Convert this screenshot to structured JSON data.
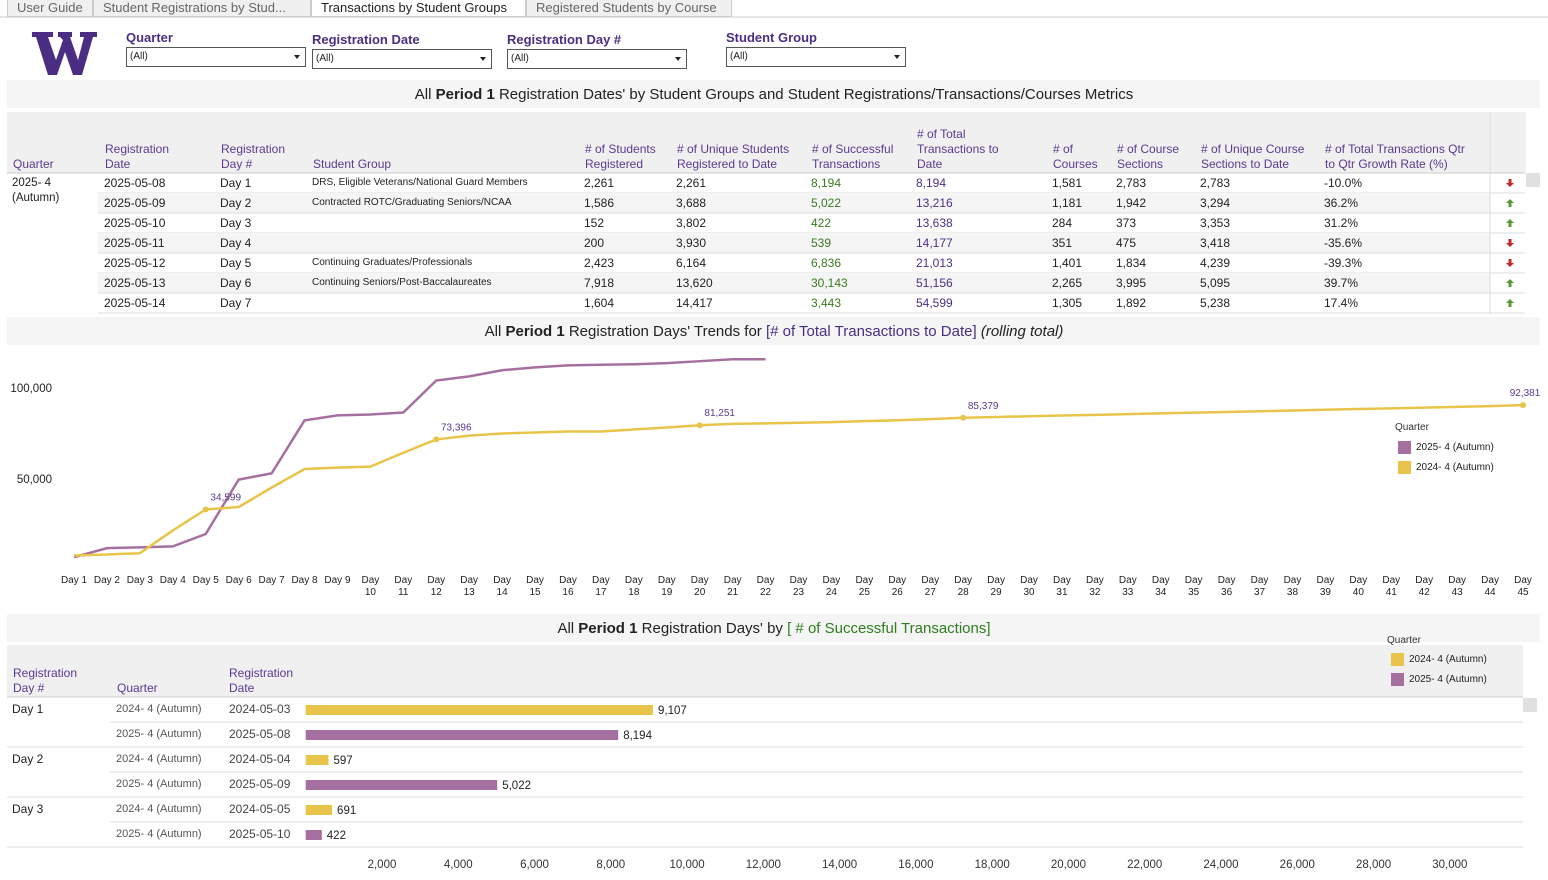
{
  "tabs": [
    "User Guide",
    "Student Registrations by Stud...",
    "Transactions by Student Groups",
    "Registered Students by Course"
  ],
  "active_tab": 2,
  "filters": [
    {
      "label": "Quarter",
      "value": "(All)"
    },
    {
      "label": "Registration Date",
      "value": "(All)"
    },
    {
      "label": "Registration Day #",
      "value": "(All)"
    },
    {
      "label": "Student Group",
      "value": "(All)"
    }
  ],
  "table": {
    "title_parts": [
      "All",
      "Period 1",
      "Registration Dates' by Student Groups and Student Registrations/Transactions/Courses Metrics"
    ],
    "columns": [
      "Quarter",
      "Registration Date",
      "Registration Day #",
      "Student Group",
      "# of Students Registered",
      "# of Unique Students Registered to Date",
      "# of Successful Transactions",
      "# of Total Transactions to Date",
      "# of Courses",
      "# of Course Sections",
      "# of Unique Course Sections to Date",
      "# of Total Transactions Qtr to Qtr Growth Rate (%)"
    ],
    "quarter": "2025- 4 (Autumn)",
    "rows": [
      [
        "2025-05-08",
        "Day 1",
        "DRS, Eligible Veterans/National Guard Members",
        "2,261",
        "2,261",
        "8,194",
        "8,194",
        "1,581",
        "2,783",
        "2,783",
        "-10.0%"
      ],
      [
        "2025-05-09",
        "Day 2",
        "Contracted ROTC/Graduating Seniors/NCAA",
        "1,586",
        "3,688",
        "5,022",
        "13,216",
        "1,181",
        "1,942",
        "3,294",
        "36.2%"
      ],
      [
        "2025-05-10",
        "Day 3",
        null,
        "152",
        "3,802",
        "422",
        "13,638",
        "284",
        "373",
        "3,353",
        "31.2%"
      ],
      [
        "2025-05-11",
        "Day 4",
        null,
        "200",
        "3,930",
        "539",
        "14,177",
        "351",
        "475",
        "3,418",
        "-35.6%"
      ],
      [
        "2025-05-12",
        "Day 5",
        "Continuing Graduates/Professionals",
        "2,423",
        "6,164",
        "6,836",
        "21,013",
        "1,401",
        "1,834",
        "4,239",
        "-39.3%"
      ],
      [
        "2025-05-13",
        "Day 6",
        "Continuing Seniors/Post-Baccalaureates",
        "7,918",
        "13,620",
        "30,143",
        "51,156",
        "2,265",
        "3,995",
        "5,095",
        "39.7%"
      ],
      [
        "2025-05-14",
        "Day 7",
        null,
        "1,604",
        "14,417",
        "3,443",
        "54,599",
        "1,305",
        "1,892",
        "5,238",
        "17.4%"
      ]
    ],
    "trend": [
      "down",
      "up",
      "up",
      "down",
      "down",
      "up",
      "up"
    ]
  },
  "chart_data": [
    {
      "type": "line",
      "title_parts": [
        "All",
        "Period 1",
        "Registration Days' Trends for",
        "[# of Total Transactions to Date]",
        "(rolling total)"
      ],
      "categories": [
        "Day 1",
        "Day 2",
        "Day 3",
        "Day 4",
        "Day 5",
        "Day 6",
        "Day 7",
        "Day 8",
        "Day 9",
        "Day 10",
        "Day 11",
        "Day 12",
        "Day 13",
        "Day 14",
        "Day 15",
        "Day 16",
        "Day 17",
        "Day 18",
        "Day 19",
        "Day 20",
        "Day 21",
        "Day 22",
        "Day 23",
        "Day 24",
        "Day 25",
        "Day 26",
        "Day 27",
        "Day 28",
        "Day 29",
        "Day 30",
        "Day 31",
        "Day 32",
        "Day 33",
        "Day 34",
        "Day 35",
        "Day 36",
        "Day 37",
        "Day 38",
        "Day 39",
        "Day 40",
        "Day 41",
        "Day 42",
        "Day 43",
        "Day 44",
        "Day 45"
      ],
      "legend_title": "Quarter",
      "series": [
        {
          "name": "2025- 4 (Autumn)",
          "color": "#a5709f",
          "values": [
            8194,
            13216,
            13638,
            14177,
            21013,
            51156,
            54599,
            83900,
            86700,
            87200,
            88300,
            106000,
            108300,
            111700,
            113300,
            114400,
            114700,
            115000,
            115600,
            116700,
            117800,
            117800,
            null,
            null,
            null,
            null,
            null,
            null,
            null,
            null,
            null,
            null,
            null,
            null,
            null,
            null,
            null,
            null,
            null,
            null,
            null,
            null,
            null,
            null,
            null
          ],
          "value_labels": [
            null,
            null,
            null,
            null,
            null,
            null,
            null,
            null,
            null,
            null,
            null,
            null,
            null,
            null,
            null,
            null,
            null,
            null,
            null,
            null,
            null,
            null,
            null,
            null,
            null,
            null,
            null,
            null,
            null,
            null,
            null,
            null,
            null,
            null,
            null,
            null,
            null,
            null,
            null,
            null,
            null,
            null,
            null,
            null,
            null
          ]
        },
        {
          "name": "2024- 4 (Autumn)",
          "color": "#e8c54a",
          "values": [
            9107,
            9704,
            10395,
            23000,
            34599,
            36000,
            46700,
            57000,
            57800,
            58300,
            66000,
            73396,
            75500,
            76700,
            77200,
            77800,
            77800,
            78900,
            80000,
            81251,
            82000,
            82300,
            82600,
            83000,
            83500,
            84000,
            84600,
            85379,
            85800,
            86200,
            86600,
            87000,
            87400,
            87800,
            88200,
            88600,
            89000,
            89400,
            89800,
            90200,
            90600,
            91000,
            91400,
            91800,
            92381
          ],
          "value_labels": [
            null,
            null,
            null,
            null,
            "34,599",
            null,
            null,
            null,
            null,
            null,
            null,
            "73,396",
            null,
            null,
            null,
            null,
            null,
            null,
            null,
            "81,251",
            null,
            null,
            null,
            null,
            null,
            null,
            null,
            "85,379",
            null,
            null,
            null,
            null,
            null,
            null,
            null,
            null,
            null,
            null,
            null,
            null,
            null,
            null,
            null,
            null,
            "92,381"
          ]
        }
      ],
      "ylim": [
        0,
        124000
      ],
      "yticks": [
        {
          "value": 50000,
          "label": "50,000"
        },
        {
          "value": 100000,
          "label": "100,000"
        }
      ]
    },
    {
      "type": "bar",
      "title_parts": [
        "All",
        "Period 1",
        "Registration Days' by",
        "[ # of Successful Transactions]"
      ],
      "columns": [
        "Registration Day #",
        "Quarter",
        "Registration Date"
      ],
      "days": [
        "Day 1",
        null,
        "Day 2",
        null,
        "Day 3",
        null
      ],
      "quarters": [
        "2024- 4 (Autumn)",
        "2025- 4 (Autumn)",
        "2024- 4 (Autumn)",
        "2025- 4 (Autumn)",
        "2024- 4 (Autumn)",
        "2025- 4 (Autumn)"
      ],
      "dates": [
        "2024-05-03",
        "2025-05-08",
        "2024-05-04",
        "2025-05-09",
        "2024-05-05",
        "2025-05-10"
      ],
      "values": [
        9107,
        8194,
        597,
        5022,
        691,
        422
      ],
      "value_labels": [
        "9,107",
        "8,194",
        "597",
        "5,022",
        "691",
        "422"
      ],
      "legend_title": "Quarter",
      "legend": [
        {
          "name": "2024- 4 (Autumn)",
          "color": "#e8c54a"
        },
        {
          "name": "2025- 4 (Autumn)",
          "color": "#a5709f"
        }
      ],
      "xlim": [
        0,
        31840
      ],
      "xticks": [
        {
          "value": 2000,
          "label": "2,000"
        },
        {
          "value": 4000,
          "label": "4,000"
        },
        {
          "value": 6000,
          "label": "6,000"
        },
        {
          "value": 8000,
          "label": "8,000"
        },
        {
          "value": 10000,
          "label": "10,000"
        },
        {
          "value": 12000,
          "label": "12,000"
        },
        {
          "value": 14000,
          "label": "14,000"
        },
        {
          "value": 16000,
          "label": "16,000"
        },
        {
          "value": 18000,
          "label": "18,000"
        },
        {
          "value": 20000,
          "label": "20,000"
        },
        {
          "value": 22000,
          "label": "22,000"
        },
        {
          "value": 24000,
          "label": "24,000"
        },
        {
          "value": 26000,
          "label": "26,000"
        },
        {
          "value": 28000,
          "label": "28,000"
        },
        {
          "value": 30000,
          "label": "30,000"
        }
      ]
    }
  ]
}
